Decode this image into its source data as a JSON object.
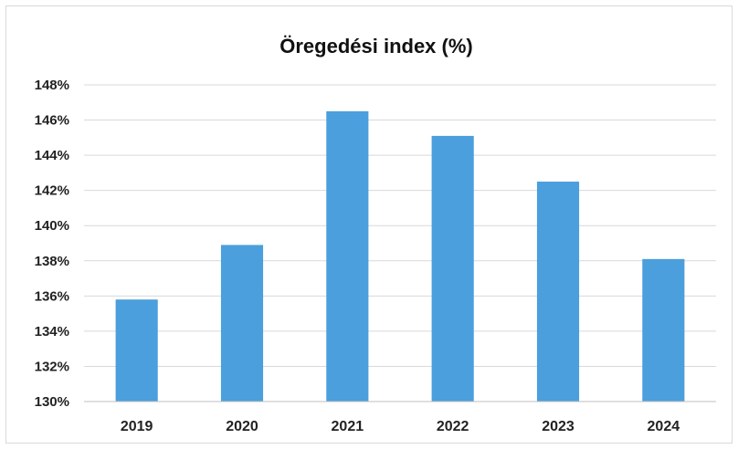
{
  "chart_data": {
    "type": "bar",
    "title": "Öregedési index (%)",
    "xlabel": "",
    "ylabel": "",
    "categories": [
      "2019",
      "2020",
      "2021",
      "2022",
      "2023",
      "2024"
    ],
    "values": [
      135.8,
      138.9,
      146.5,
      145.1,
      142.5,
      138.1
    ],
    "value_unit": "%",
    "ylim": [
      130,
      148
    ],
    "y_ticks": [
      "130%",
      "132%",
      "134%",
      "136%",
      "138%",
      "140%",
      "142%",
      "144%",
      "146%",
      "148%"
    ],
    "y_tick_values": [
      130,
      132,
      134,
      136,
      138,
      140,
      142,
      144,
      146,
      148
    ],
    "grid": true,
    "legend": "none",
    "bar_color": "#4a9fdc"
  }
}
